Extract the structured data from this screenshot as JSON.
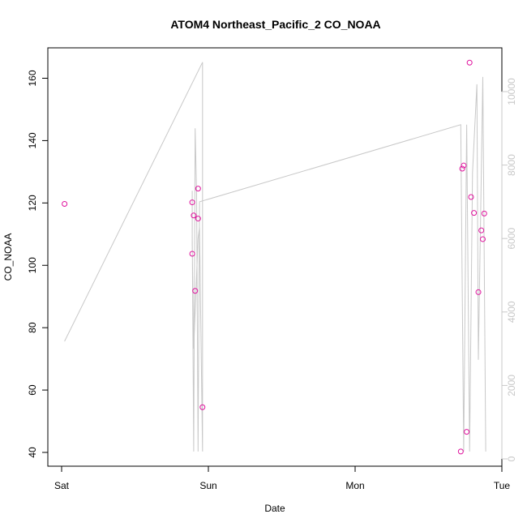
{
  "chart_data": {
    "type": "line",
    "title": "ATOM4 Northeast_Pacific_2 CO_NOAA",
    "xlabel": "Date",
    "ylabel": "CO_NOAA",
    "y2label": "",
    "x_unit": "days since Sat 00:00",
    "xlim": [
      0,
      3
    ],
    "ylim": [
      36.5,
      170
    ],
    "y2lim": [
      -200,
      11300
    ],
    "x_ticks": [
      {
        "value": 0,
        "label": "Sat"
      },
      {
        "value": 1,
        "label": "Sun"
      },
      {
        "value": 2,
        "label": "Mon"
      },
      {
        "value": 3,
        "label": "Tue"
      }
    ],
    "y_ticks": [
      40,
      60,
      80,
      100,
      120,
      140,
      160
    ],
    "y2_ticks": [
      0,
      2000,
      4000,
      6000,
      8000,
      10000
    ],
    "colors": {
      "line": "#c8c8c8",
      "points": "#e0119d",
      "axis": "#000000",
      "right_axis": "#c8c8c8"
    },
    "series": [
      {
        "kind": "line",
        "axis": "right",
        "points": [
          [
            0.02,
            3200
          ],
          [
            0.96,
            10800
          ],
          [
            0.96,
            200
          ],
          [
            0.94,
            6300
          ],
          [
            0.93,
            6000
          ],
          [
            0.9,
            3000
          ],
          [
            0.89,
            5800
          ],
          [
            0.89,
            7300
          ],
          [
            0.89,
            6100
          ],
          [
            0.9,
            200
          ],
          [
            0.91,
            9000
          ],
          [
            0.92,
            7200
          ],
          [
            0.93,
            200
          ],
          [
            0.94,
            7000
          ],
          [
            2.72,
            9100
          ],
          [
            2.74,
            200
          ],
          [
            2.76,
            9100
          ],
          [
            2.78,
            200
          ],
          [
            2.8,
            7800
          ],
          [
            2.83,
            10200
          ],
          [
            2.84,
            2700
          ],
          [
            2.87,
            10400
          ],
          [
            2.89,
            200
          ]
        ]
      },
      {
        "kind": "scatter",
        "axis": "left",
        "points": [
          [
            0.02,
            119.7
          ],
          [
            0.89,
            103.7
          ],
          [
            0.89,
            120.2
          ],
          [
            0.9,
            116.0
          ],
          [
            0.91,
            91.8
          ],
          [
            0.93,
            115.0
          ],
          [
            0.93,
            124.6
          ],
          [
            0.96,
            54.5
          ],
          [
            2.72,
            40.3
          ],
          [
            2.73,
            131.0
          ],
          [
            2.74,
            132.0
          ],
          [
            2.76,
            46.6
          ],
          [
            2.78,
            165.0
          ],
          [
            2.79,
            121.9
          ],
          [
            2.81,
            116.8
          ],
          [
            2.84,
            91.4
          ],
          [
            2.86,
            111.2
          ],
          [
            2.87,
            108.4
          ],
          [
            2.88,
            116.6
          ]
        ]
      }
    ]
  }
}
